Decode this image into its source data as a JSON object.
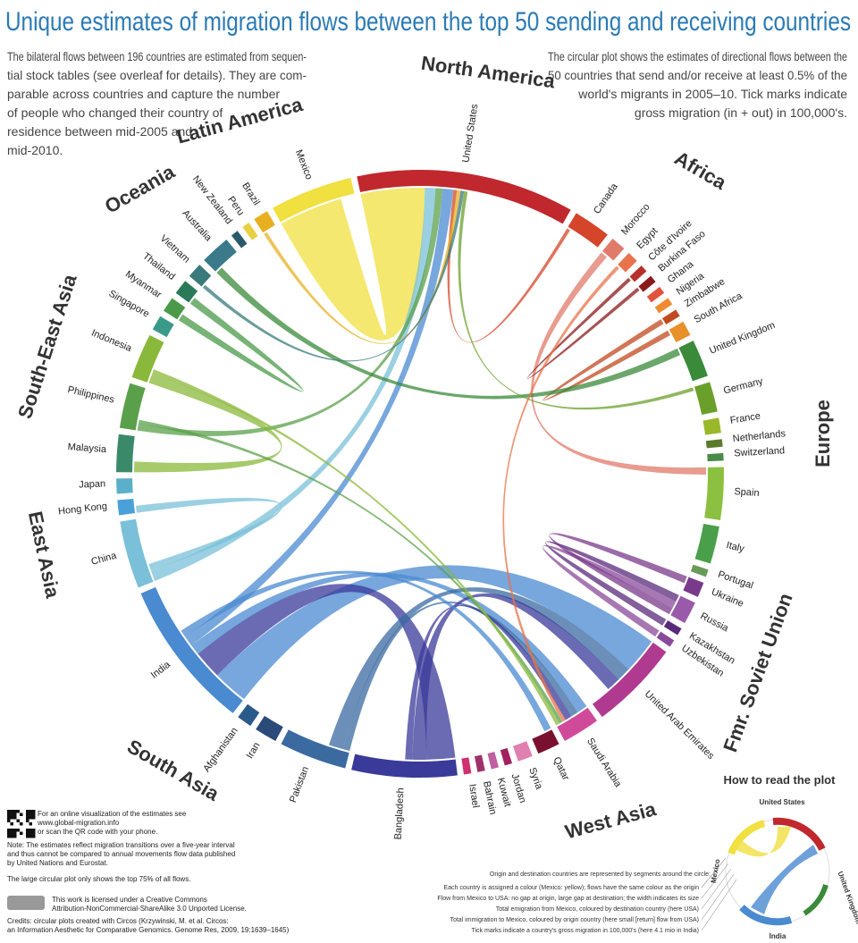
{
  "title": "Unique estimates of migration flows between the top 50 sending and receiving countries",
  "intro_left": [
    "The bilateral flows between 196 countries are estimated from sequen-",
    "tial stock tables (see overleaf for details). They are com-",
    "parable across countries and capture the number",
    "of people who changed their country of",
    "residence between mid-2005 and",
    "mid-2010."
  ],
  "intro_right": [
    "The circular plot shows the estimates of directional flows between the",
    "50 countries that send and/or receive at least 0.5% of the",
    "world's migrants in 2005–10. Tick marks indicate",
    "gross migration (in + out) in 100,000's."
  ],
  "regions": [
    {
      "name": "North America",
      "color": "#c0282d"
    },
    {
      "name": "Latin America",
      "color": "#e8a71c"
    },
    {
      "name": "Oceania",
      "color": "#1b6f6e"
    },
    {
      "name": "South-East Asia",
      "color": "#4aa04a"
    },
    {
      "name": "East Asia",
      "color": "#3aa08a"
    },
    {
      "name": "South Asia",
      "color": "#2e2e7e"
    },
    {
      "name": "West Asia",
      "color": "#8a3a9e"
    },
    {
      "name": "Fmr. Soviet Union",
      "color": "#2e2e7e"
    },
    {
      "name": "Europe",
      "color": "#3a8a2a"
    },
    {
      "name": "Africa",
      "color": "#e06020"
    }
  ],
  "countries": [
    {
      "name": "United States",
      "color": "#c0282d",
      "size": 58
    },
    {
      "name": "Canada",
      "color": "#d4452a",
      "size": 10
    },
    {
      "name": "Morocco",
      "color": "#e07a6a",
      "size": 4
    },
    {
      "name": "Egypt",
      "color": "#e8734a",
      "size": 3
    },
    {
      "name": "Côte d'Ivoire",
      "color": "#b8302a",
      "size": 2
    },
    {
      "name": "Burkina Faso",
      "color": "#8b1a1a",
      "size": 2
    },
    {
      "name": "Ghana",
      "color": "#e0533a",
      "size": 2
    },
    {
      "name": "Nigeria",
      "color": "#f08a30",
      "size": 2
    },
    {
      "name": "Zimbabwe",
      "color": "#c04a20",
      "size": 2
    },
    {
      "name": "South Africa",
      "color": "#e8902a",
      "size": 4
    },
    {
      "name": "United Kingdom",
      "color": "#3a8a3a",
      "size": 10
    },
    {
      "name": "Germany",
      "color": "#6aa02a",
      "size": 8
    },
    {
      "name": "France",
      "color": "#9ab82a",
      "size": 4
    },
    {
      "name": "Netherlands",
      "color": "#5a7a2a",
      "size": 2
    },
    {
      "name": "Switzerland",
      "color": "#4a8a4a",
      "size": 2
    },
    {
      "name": "Spain",
      "color": "#8cc040",
      "size": 14
    },
    {
      "name": "Italy",
      "color": "#4aa04a",
      "size": 10
    },
    {
      "name": "Portugal",
      "color": "#6a9a5a",
      "size": 2
    },
    {
      "name": "Ukraine",
      "color": "#7a3a8a",
      "size": 4
    },
    {
      "name": "Russia",
      "color": "#9a5aaa",
      "size": 6
    },
    {
      "name": "Kazakhstan",
      "color": "#5a2a7a",
      "size": 2
    },
    {
      "name": "Uzbekistan",
      "color": "#8a4a9a",
      "size": 2
    },
    {
      "name": "United Arab Emirates",
      "color": "#b03a90",
      "size": 24
    },
    {
      "name": "Saudi Arabia",
      "color": "#d04a9a",
      "size": 10
    },
    {
      "name": "Qatar",
      "color": "#7a1030",
      "size": 6
    },
    {
      "name": "Syria",
      "color": "#e080b0",
      "size": 4
    },
    {
      "name": "Jordan",
      "color": "#a02060",
      "size": 2
    },
    {
      "name": "Kuwait",
      "color": "#c060a0",
      "size": 2
    },
    {
      "name": "Bahrain",
      "color": "#a0306a",
      "size": 2
    },
    {
      "name": "Israel",
      "color": "#d03070",
      "size": 2
    },
    {
      "name": "Bangladesh",
      "color": "#3a3a9a",
      "size": 28
    },
    {
      "name": "Pakistan",
      "color": "#3a6aa0",
      "size": 18
    },
    {
      "name": "Iran",
      "color": "#2a4a7a",
      "size": 6
    },
    {
      "name": "Afghanistan",
      "color": "#2a5a8a",
      "size": 4
    },
    {
      "name": "India",
      "color": "#4a8ad0",
      "size": 40
    },
    {
      "name": "China",
      "color": "#7ac0d8",
      "size": 18
    },
    {
      "name": "Hong Kong",
      "color": "#4aa0d8",
      "size": 4
    },
    {
      "name": "Japan",
      "color": "#5ab0c8",
      "size": 4
    },
    {
      "name": "Malaysia",
      "color": "#3a8a6a",
      "size": 10
    },
    {
      "name": "Philippines",
      "color": "#5aa04a",
      "size": 12
    },
    {
      "name": "Indonesia",
      "color": "#8ab83a",
      "size": 12
    },
    {
      "name": "Singapore",
      "color": "#3a9a8a",
      "size": 4
    },
    {
      "name": "Myanmar",
      "color": "#4a9a4a",
      "size": 4
    },
    {
      "name": "Thailand",
      "color": "#2a7a5a",
      "size": 4
    },
    {
      "name": "Vietnam",
      "color": "#3a7a7a",
      "size": 4
    },
    {
      "name": "Australia",
      "color": "#3a7a8a",
      "size": 8
    },
    {
      "name": "New Zealand",
      "color": "#2a5a6a",
      "size": 2
    },
    {
      "name": "Peru",
      "color": "#e8d040",
      "size": 2
    },
    {
      "name": "Brazil",
      "color": "#e8b020",
      "size": 4
    },
    {
      "name": "Mexico",
      "color": "#f0e040",
      "size": 22
    }
  ],
  "flows": [
    {
      "from": "Mexico",
      "to": "United States",
      "value": 18
    },
    {
      "from": "India",
      "to": "United Arab Emirates",
      "value": 10
    },
    {
      "from": "Bangladesh",
      "to": "India",
      "value": 8
    },
    {
      "from": "India",
      "to": "Saudi Arabia",
      "value": 3
    },
    {
      "from": "Pakistan",
      "to": "Saudi Arabia",
      "value": 2
    },
    {
      "from": "Pakistan",
      "to": "United Arab Emirates",
      "value": 4
    },
    {
      "from": "Bangladesh",
      "to": "United Arab Emirates",
      "value": 4
    },
    {
      "from": "Bangladesh",
      "to": "Saudi Arabia",
      "value": 2
    },
    {
      "from": "China",
      "to": "United States",
      "value": 3
    },
    {
      "from": "Philippines",
      "to": "United States",
      "value": 2
    },
    {
      "from": "India",
      "to": "United States",
      "value": 3
    },
    {
      "from": "Morocco",
      "to": "Spain",
      "value": 2
    },
    {
      "from": "Indonesia",
      "to": "Malaysia",
      "value": 3
    },
    {
      "from": "Myanmar",
      "to": "Thailand",
      "value": 2
    },
    {
      "from": "China",
      "to": "Hong Kong",
      "value": 2
    },
    {
      "from": "Kazakhstan",
      "to": "Russia",
      "value": 2
    },
    {
      "from": "Uzbekistan",
      "to": "Russia",
      "value": 2
    },
    {
      "from": "Ukraine",
      "to": "Russia",
      "value": 2
    },
    {
      "from": "Burkina Faso",
      "to": "Côte d'Ivoire",
      "value": 1
    },
    {
      "from": "Zimbabwe",
      "to": "South Africa",
      "value": 1.5
    },
    {
      "from": "United Kingdom",
      "to": "Australia",
      "value": 2
    },
    {
      "from": "Canada",
      "to": "United States",
      "value": 1
    },
    {
      "from": "Brazil",
      "to": "United States",
      "value": 1
    },
    {
      "from": "Egypt",
      "to": "Saudi Arabia",
      "value": 1
    },
    {
      "from": "Philippines",
      "to": "Saudi Arabia",
      "value": 1
    },
    {
      "from": "Indonesia",
      "to": "Saudi Arabia",
      "value": 1
    },
    {
      "from": "Vietnam",
      "to": "United States",
      "value": 1
    },
    {
      "from": "India",
      "to": "Qatar",
      "value": 2
    },
    {
      "from": "Germany",
      "to": "United States",
      "value": 1
    }
  ],
  "notes": {
    "qr": [
      "For an online visualization of the estimates see",
      "www.global-migration.info",
      "or scan the QR code with your phone."
    ],
    "transitions": [
      "Note: The estimates reflect migration transitions over a five-year interval",
      "and thus cannot be compared to annual movements flow data published",
      "by United Nations and Eurostat."
    ],
    "large_plot": "The large circular plot only shows the top 75% of all flows.",
    "license": [
      "This work is licensed under a Creative Commons",
      "Attribution-NonCommercial-ShareAlike 3.0 Unported License."
    ],
    "credits": [
      "Credits: circular plots created with Circos (Krzywinski, M. et al. Circos:",
      "an Information Aesthetic for Comparative Genomics. Genome Res, 2009, 19:1639–1645)"
    ]
  },
  "how_to_read": {
    "title": "How to read the plot",
    "intro": "Origin and destination countries are represented by segments around the circle:",
    "items": [
      "Each country is assigned a colour (Mexico: yellow); flows have the same colour as the origin",
      "Flow from Mexico to USA: no gap at origin, large gap at destination; the width indicates its size",
      "Total emigration from Mexico, coloured by destination country (here USA)",
      "Total immigration to Mexico, coloured by origin country (here small [return] flow from USA)",
      "Tick marks indicate a country's gross migration in 100,000's (here 4.1 mio in India)"
    ],
    "labels": [
      "United States",
      "Mexico",
      "United Kingdom",
      "India"
    ]
  }
}
